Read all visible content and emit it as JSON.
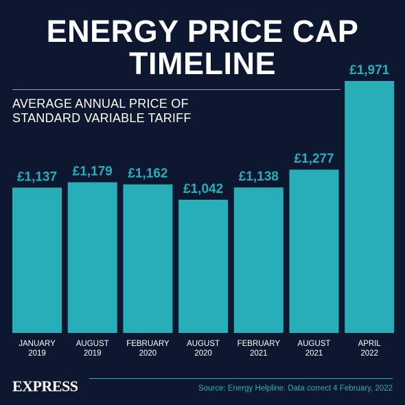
{
  "header": {
    "title_line1": "ENERGY PRICE CAP",
    "title_line2": "TIMELINE",
    "subtitle_line1": "AVERAGE ANNUAL PRICE OF",
    "subtitle_line2": "STANDARD VARIABLE TARIFF"
  },
  "footer": {
    "brand": "EXPRESS",
    "source": "Source: Energy Helpline. Data correct 4 February, 2022"
  },
  "colors": {
    "background": "#0d1730",
    "bar": "#27aeb9",
    "text": "#ffffff"
  },
  "chart_data": {
    "type": "bar",
    "title": "ENERGY PRICE CAP TIMELINE",
    "subtitle": "AVERAGE ANNUAL PRICE OF STANDARD VARIABLE TARIFF",
    "xlabel": "",
    "ylabel": "",
    "grid": false,
    "legend": "none",
    "categories": [
      [
        "JANUARY",
        "2019"
      ],
      [
        "AUGUST",
        "2019"
      ],
      [
        "FEBRUARY",
        "2020"
      ],
      [
        "AUGUST",
        "2020"
      ],
      [
        "FEBRUARY",
        "2021"
      ],
      [
        "AUGUST",
        "2021"
      ],
      [
        "APRIL",
        "2022"
      ]
    ],
    "values": [
      1137,
      1179,
      1162,
      1042,
      1138,
      1277,
      1971
    ],
    "value_labels": [
      "£1,137",
      "£1,179",
      "£1,162",
      "£1,042",
      "£1,138",
      "£1,277",
      "£1,971"
    ],
    "unit": "£"
  }
}
